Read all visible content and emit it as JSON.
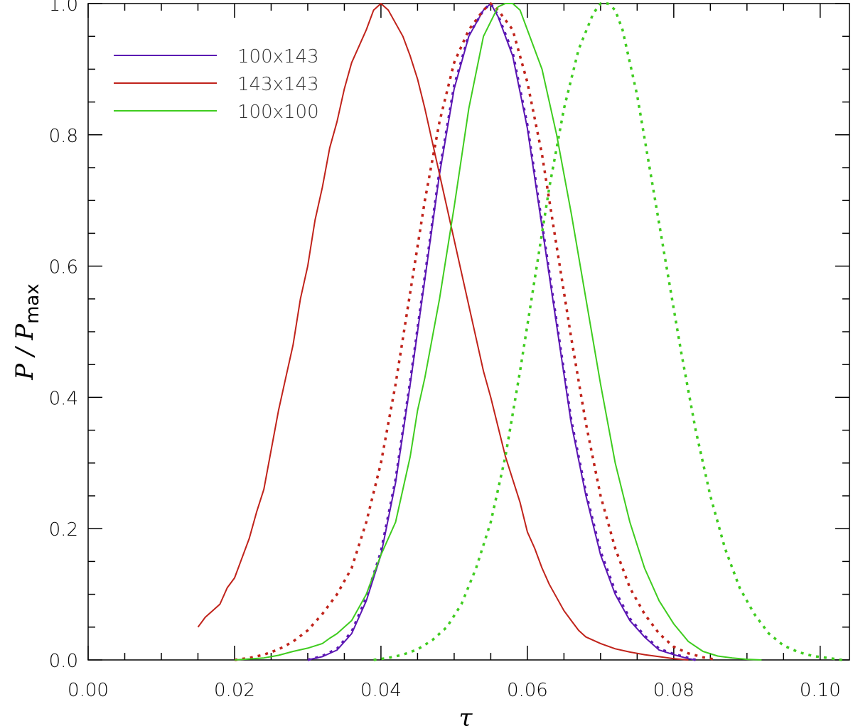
{
  "chart_data": {
    "type": "line",
    "xlabel": "τ",
    "ylabel": {
      "main": "P / P",
      "subscript": "max"
    },
    "xlim": [
      0.0,
      0.104
    ],
    "ylim": [
      0.0,
      1.0
    ],
    "xticks": [
      "0.00",
      "0.02",
      "0.04",
      "0.06",
      "0.08",
      "0.10"
    ],
    "yticks": [
      "0.0",
      "0.2",
      "0.4",
      "0.6",
      "0.8",
      "1.0"
    ],
    "grid": false,
    "legend_position": "top-left",
    "legend": [
      {
        "label": "100x143",
        "color": "#5b16b3"
      },
      {
        "label": "143x143",
        "color": "#c0231b"
      },
      {
        "label": "100x100",
        "color": "#3fcc1f"
      }
    ],
    "series": [
      {
        "name": "100x143",
        "style": "solid",
        "color": "#5b16b3",
        "x": [
          0.03,
          0.032,
          0.034,
          0.036,
          0.038,
          0.04,
          0.042,
          0.044,
          0.046,
          0.048,
          0.05,
          0.052,
          0.054,
          0.055,
          0.056,
          0.058,
          0.06,
          0.062,
          0.064,
          0.066,
          0.068,
          0.07,
          0.072,
          0.074,
          0.076,
          0.078,
          0.08,
          0.082,
          0.083
        ],
        "y": [
          0.0,
          0.005,
          0.015,
          0.04,
          0.09,
          0.16,
          0.27,
          0.42,
          0.58,
          0.74,
          0.87,
          0.95,
          0.99,
          1.0,
          0.98,
          0.92,
          0.81,
          0.66,
          0.51,
          0.36,
          0.25,
          0.16,
          0.1,
          0.06,
          0.035,
          0.015,
          0.008,
          0.002,
          0.0
        ]
      },
      {
        "name": "100x143 (dotted)",
        "style": "dotted",
        "color": "#5b16b3",
        "x": [
          0.03,
          0.032,
          0.034,
          0.036,
          0.038,
          0.04,
          0.042,
          0.044,
          0.046,
          0.048,
          0.05,
          0.052,
          0.054,
          0.055,
          0.056,
          0.058,
          0.06,
          0.062,
          0.064,
          0.066,
          0.068,
          0.07,
          0.072,
          0.074,
          0.076,
          0.078,
          0.08,
          0.082,
          0.083
        ],
        "y": [
          0.0,
          0.006,
          0.017,
          0.043,
          0.095,
          0.165,
          0.275,
          0.425,
          0.585,
          0.745,
          0.875,
          0.952,
          0.99,
          1.0,
          0.982,
          0.925,
          0.815,
          0.665,
          0.515,
          0.365,
          0.255,
          0.165,
          0.105,
          0.063,
          0.037,
          0.017,
          0.009,
          0.003,
          0.0
        ]
      },
      {
        "name": "143x143",
        "style": "solid",
        "color": "#c0231b",
        "x": [
          0.015,
          0.016,
          0.017,
          0.018,
          0.019,
          0.02,
          0.021,
          0.022,
          0.023,
          0.024,
          0.025,
          0.026,
          0.027,
          0.028,
          0.029,
          0.03,
          0.031,
          0.032,
          0.033,
          0.034,
          0.035,
          0.036,
          0.037,
          0.038,
          0.039,
          0.04,
          0.041,
          0.042,
          0.043,
          0.044,
          0.045,
          0.046,
          0.047,
          0.048,
          0.049,
          0.05,
          0.051,
          0.052,
          0.053,
          0.054,
          0.055,
          0.056,
          0.057,
          0.058,
          0.059,
          0.06,
          0.061,
          0.062,
          0.063,
          0.064,
          0.065,
          0.066,
          0.067,
          0.068,
          0.07,
          0.072,
          0.074,
          0.076,
          0.078,
          0.08,
          0.082
        ],
        "y": [
          0.05,
          0.065,
          0.075,
          0.085,
          0.11,
          0.125,
          0.155,
          0.185,
          0.225,
          0.26,
          0.32,
          0.38,
          0.43,
          0.48,
          0.55,
          0.6,
          0.67,
          0.72,
          0.78,
          0.82,
          0.87,
          0.91,
          0.935,
          0.96,
          0.99,
          1.0,
          0.99,
          0.97,
          0.95,
          0.92,
          0.885,
          0.84,
          0.79,
          0.74,
          0.69,
          0.64,
          0.59,
          0.54,
          0.49,
          0.44,
          0.4,
          0.355,
          0.31,
          0.275,
          0.24,
          0.195,
          0.17,
          0.14,
          0.115,
          0.095,
          0.075,
          0.06,
          0.045,
          0.035,
          0.025,
          0.017,
          0.012,
          0.008,
          0.005,
          0.002,
          0.0
        ]
      },
      {
        "name": "143x143 (dotted)",
        "style": "dotted",
        "color": "#c0231b",
        "x": [
          0.02,
          0.022,
          0.024,
          0.026,
          0.028,
          0.03,
          0.032,
          0.034,
          0.036,
          0.038,
          0.04,
          0.042,
          0.044,
          0.046,
          0.048,
          0.05,
          0.052,
          0.054,
          0.055,
          0.056,
          0.058,
          0.06,
          0.062,
          0.064,
          0.066,
          0.068,
          0.07,
          0.072,
          0.074,
          0.076,
          0.078,
          0.08,
          0.082,
          0.084,
          0.086
        ],
        "y": [
          0.0,
          0.003,
          0.008,
          0.016,
          0.028,
          0.045,
          0.07,
          0.1,
          0.14,
          0.21,
          0.3,
          0.42,
          0.56,
          0.7,
          0.82,
          0.91,
          0.96,
          0.99,
          1.0,
          0.99,
          0.96,
          0.88,
          0.77,
          0.63,
          0.49,
          0.36,
          0.25,
          0.17,
          0.11,
          0.07,
          0.04,
          0.02,
          0.01,
          0.004,
          0.0
        ]
      },
      {
        "name": "100x100",
        "style": "solid",
        "color": "#3fcc1f",
        "x": [
          0.02,
          0.024,
          0.026,
          0.028,
          0.03,
          0.032,
          0.033,
          0.034,
          0.035,
          0.036,
          0.038,
          0.04,
          0.042,
          0.044,
          0.045,
          0.046,
          0.048,
          0.05,
          0.052,
          0.054,
          0.056,
          0.057,
          0.058,
          0.059,
          0.06,
          0.062,
          0.064,
          0.066,
          0.068,
          0.07,
          0.072,
          0.074,
          0.076,
          0.078,
          0.08,
          0.082,
          0.084,
          0.086,
          0.088,
          0.09,
          0.092
        ],
        "y": [
          0.0,
          0.003,
          0.007,
          0.013,
          0.018,
          0.025,
          0.033,
          0.04,
          0.05,
          0.06,
          0.1,
          0.16,
          0.21,
          0.31,
          0.38,
          0.43,
          0.55,
          0.69,
          0.84,
          0.95,
          0.995,
          1.0,
          1.0,
          0.99,
          0.96,
          0.9,
          0.8,
          0.68,
          0.55,
          0.42,
          0.3,
          0.21,
          0.14,
          0.09,
          0.055,
          0.028,
          0.013,
          0.006,
          0.003,
          0.001,
          0.0
        ]
      },
      {
        "name": "100x100 (dotted)",
        "style": "dotted",
        "color": "#3fcc1f",
        "x": [
          0.039,
          0.041,
          0.043,
          0.045,
          0.047,
          0.049,
          0.051,
          0.053,
          0.055,
          0.057,
          0.059,
          0.061,
          0.063,
          0.065,
          0.067,
          0.069,
          0.07,
          0.071,
          0.072,
          0.073,
          0.075,
          0.077,
          0.079,
          0.081,
          0.083,
          0.085,
          0.087,
          0.089,
          0.091,
          0.093,
          0.095,
          0.097,
          0.099,
          0.101,
          0.103
        ],
        "y": [
          0.0,
          0.003,
          0.008,
          0.016,
          0.03,
          0.05,
          0.085,
          0.14,
          0.21,
          0.31,
          0.44,
          0.58,
          0.72,
          0.84,
          0.93,
          0.985,
          1.0,
          1.0,
          0.99,
          0.96,
          0.86,
          0.73,
          0.6,
          0.47,
          0.35,
          0.25,
          0.17,
          0.11,
          0.07,
          0.04,
          0.022,
          0.012,
          0.006,
          0.003,
          0.0
        ]
      }
    ]
  }
}
